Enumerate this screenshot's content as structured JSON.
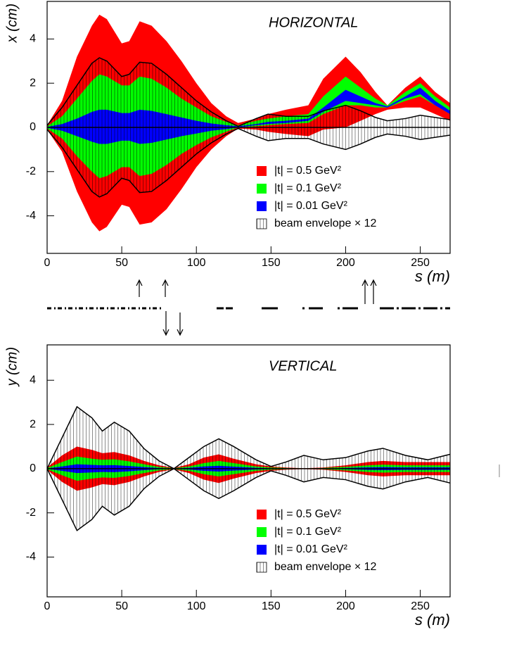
{
  "chart_data": [
    {
      "type": "band",
      "title": "HORIZONTAL",
      "xlabel": "s (m)",
      "ylabel": "x (cm)",
      "xlim": [
        0,
        270
      ],
      "ylim": [
        -5.7,
        5.7
      ],
      "xticks": [
        0,
        50,
        100,
        150,
        200,
        250
      ],
      "yticks": [
        -4,
        -2,
        0,
        2,
        4
      ],
      "x": [
        0,
        10,
        20,
        30,
        35,
        40,
        50,
        55,
        62,
        70,
        80,
        90,
        100,
        110,
        120,
        128,
        140,
        148,
        160,
        175,
        185,
        200,
        210,
        220,
        228,
        240,
        250,
        260,
        270
      ],
      "series": [
        {
          "name": "|t| = 0.5 GeV²",
          "color": "#ff0000",
          "upper": [
            0.1,
            1.2,
            3.2,
            4.6,
            5.1,
            4.9,
            3.8,
            3.9,
            4.8,
            4.6,
            3.9,
            3.0,
            2.0,
            1.1,
            0.5,
            0.2,
            0.4,
            0.6,
            0.8,
            1.0,
            2.2,
            3.2,
            2.5,
            1.6,
            1.0,
            1.8,
            2.3,
            1.6,
            1.1
          ],
          "lower": [
            -0.1,
            -1.1,
            -2.9,
            -4.3,
            -4.7,
            -4.5,
            -3.5,
            -3.6,
            -4.4,
            -4.3,
            -3.7,
            -2.8,
            -1.8,
            -1.0,
            -0.4,
            -0.05,
            -0.1,
            -0.2,
            -0.3,
            -0.4,
            -0.1,
            0.0,
            0.3,
            0.6,
            0.8,
            0.9,
            0.9,
            0.6,
            0.3
          ]
        },
        {
          "name": "|t| = 0.1 GeV²",
          "color": "#00ff00",
          "upper": [
            0.05,
            0.5,
            1.3,
            2.1,
            2.4,
            2.3,
            1.9,
            1.9,
            2.3,
            2.2,
            1.8,
            1.3,
            0.9,
            0.5,
            0.25,
            0.1,
            0.3,
            0.4,
            0.5,
            0.6,
            1.4,
            2.3,
            1.8,
            1.3,
            1.0,
            1.6,
            2.0,
            1.4,
            0.9
          ],
          "lower": [
            -0.05,
            -0.5,
            -1.3,
            -2.0,
            -2.3,
            -2.2,
            -1.8,
            -1.8,
            -2.2,
            -2.1,
            -1.7,
            -1.2,
            -0.8,
            -0.45,
            -0.2,
            0.0,
            0.05,
            0.1,
            0.15,
            0.2,
            0.6,
            1.0,
            1.0,
            0.9,
            0.9,
            1.2,
            1.4,
            1.0,
            0.6
          ]
        },
        {
          "name": "|t| = 0.01 GeV²",
          "color": "#0000ff",
          "upper": [
            0.02,
            0.15,
            0.4,
            0.7,
            0.8,
            0.8,
            0.65,
            0.65,
            0.8,
            0.75,
            0.6,
            0.45,
            0.3,
            0.18,
            0.1,
            0.05,
            0.15,
            0.25,
            0.3,
            0.4,
            0.9,
            1.7,
            1.4,
            1.1,
            0.95,
            1.4,
            1.8,
            1.2,
            0.75
          ],
          "lower": [
            -0.02,
            -0.15,
            -0.4,
            -0.65,
            -0.75,
            -0.75,
            -0.6,
            -0.6,
            -0.75,
            -0.7,
            -0.55,
            -0.4,
            -0.28,
            -0.15,
            -0.08,
            0.0,
            0.1,
            0.15,
            0.2,
            0.3,
            0.7,
            1.2,
            1.1,
            1.0,
            0.9,
            1.3,
            1.5,
            1.0,
            0.6
          ]
        }
      ],
      "envelope": {
        "name": "beam envelope × 12",
        "color": "#000000",
        "values": [
          0.1,
          0.9,
          1.9,
          2.9,
          3.15,
          3.0,
          2.3,
          2.4,
          2.95,
          2.9,
          2.4,
          1.8,
          1.2,
          0.7,
          0.3,
          0.05,
          0.4,
          0.6,
          0.5,
          0.5,
          0.75,
          1.0,
          0.75,
          0.45,
          0.3,
          0.4,
          0.55,
          0.45,
          0.35
        ]
      }
    },
    {
      "type": "band",
      "title": "VERTICAL",
      "xlabel": "s (m)",
      "ylabel": "y (cm)",
      "xlim": [
        0,
        270
      ],
      "ylim": [
        -5.8,
        5.6
      ],
      "xticks": [
        0,
        50,
        100,
        150,
        200,
        250
      ],
      "yticks": [
        -4,
        -2,
        0,
        2,
        4
      ],
      "x": [
        0,
        10,
        20,
        30,
        37,
        45,
        55,
        65,
        75,
        85,
        95,
        105,
        115,
        125,
        140,
        150,
        160,
        172,
        185,
        200,
        215,
        225,
        240,
        255,
        270
      ],
      "series": [
        {
          "name": "|t| = 0.5 GeV²",
          "color": "#ff0000",
          "values": [
            0.05,
            0.6,
            1.0,
            0.85,
            0.7,
            0.75,
            0.6,
            0.35,
            0.15,
            0.03,
            0.2,
            0.5,
            0.65,
            0.45,
            0.2,
            0.1,
            0.05,
            0.02,
            0.05,
            0.15,
            0.3,
            0.35,
            0.3,
            0.3,
            0.3
          ]
        },
        {
          "name": "|t| = 0.1 GeV²",
          "color": "#00ff00",
          "values": [
            0.03,
            0.3,
            0.55,
            0.45,
            0.4,
            0.42,
            0.33,
            0.2,
            0.08,
            0.02,
            0.1,
            0.25,
            0.35,
            0.25,
            0.1,
            0.05,
            0.03,
            0.01,
            0.03,
            0.08,
            0.15,
            0.18,
            0.15,
            0.15,
            0.15
          ]
        },
        {
          "name": "|t| = 0.01 GeV²",
          "color": "#0000ff",
          "values": [
            0.01,
            0.1,
            0.2,
            0.17,
            0.15,
            0.16,
            0.12,
            0.07,
            0.03,
            0.01,
            0.04,
            0.1,
            0.13,
            0.09,
            0.04,
            0.02,
            0.01,
            0.005,
            0.01,
            0.03,
            0.06,
            0.07,
            0.06,
            0.06,
            0.06
          ]
        }
      ],
      "envelope": {
        "name": "beam envelope × 12",
        "color": "#000000",
        "values": [
          0,
          1.4,
          2.8,
          2.3,
          1.7,
          2.1,
          1.7,
          0.9,
          0.35,
          0.0,
          0.5,
          1.0,
          1.35,
          1.0,
          0.4,
          0.1,
          0.3,
          0.6,
          0.4,
          0.5,
          0.8,
          0.92,
          0.6,
          0.4,
          0.65
        ]
      }
    }
  ]
}
